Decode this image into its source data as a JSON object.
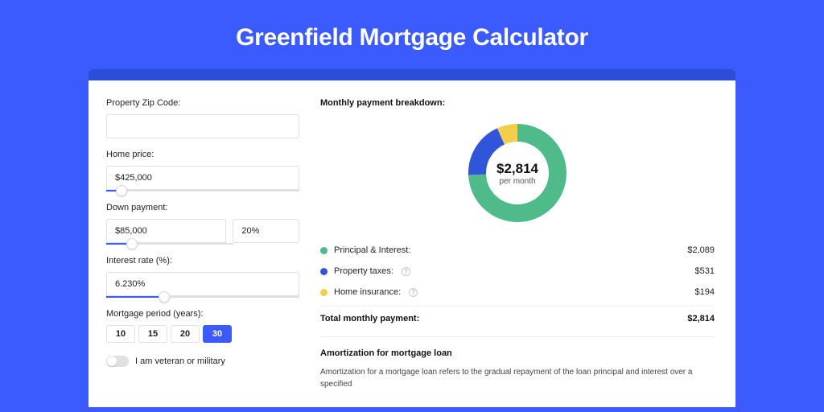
{
  "title": "Greenfield Mortgage Calculator",
  "colors": {
    "page_bg": "#3b5bff",
    "panel_wrap_bg": "#2b4dd8",
    "panel_bg": "#ffffff",
    "accent": "#3b5bff",
    "slice_pi": "#4fba8a",
    "slice_tax": "#3055d8",
    "slice_ins": "#f2cf4a",
    "border": "#e0e0e0",
    "text": "#222222"
  },
  "form": {
    "zip": {
      "label": "Property Zip Code:",
      "value": ""
    },
    "home_price": {
      "label": "Home price:",
      "value": "$425,000",
      "slider_pct": 8
    },
    "down_payment": {
      "label": "Down payment:",
      "value": "$85,000",
      "pct_value": "20%",
      "slider_pct": 20
    },
    "interest_rate": {
      "label": "Interest rate (%):",
      "value": "6.230%",
      "slider_pct": 30
    },
    "period": {
      "label": "Mortgage period (years):",
      "options": [
        "10",
        "15",
        "20",
        "30"
      ],
      "selected": "30"
    },
    "veteran": {
      "label": "I am veteran or military",
      "on": false
    }
  },
  "breakdown": {
    "title": "Monthly payment breakdown:",
    "center_amount": "$2,814",
    "center_sub": "per month",
    "donut": {
      "type": "pie",
      "radius": 50,
      "stroke_width": 22,
      "bg": "#ffffff",
      "slices": [
        {
          "key": "pi",
          "color": "#4fba8a",
          "fraction": 0.742
        },
        {
          "key": "tax",
          "color": "#3055d8",
          "fraction": 0.189
        },
        {
          "key": "ins",
          "color": "#f2cf4a",
          "fraction": 0.069
        }
      ]
    },
    "items": [
      {
        "key": "pi",
        "label": "Principal & Interest:",
        "value": "$2,089",
        "color": "#4fba8a",
        "help": false
      },
      {
        "key": "tax",
        "label": "Property taxes:",
        "value": "$531",
        "color": "#3055d8",
        "help": true
      },
      {
        "key": "ins",
        "label": "Home insurance:",
        "value": "$194",
        "color": "#f2cf4a",
        "help": true
      }
    ],
    "total_label": "Total monthly payment:",
    "total_value": "$2,814"
  },
  "amortization": {
    "title": "Amortization for mortgage loan",
    "text": "Amortization for a mortgage loan refers to the gradual repayment of the loan principal and interest over a specified"
  }
}
